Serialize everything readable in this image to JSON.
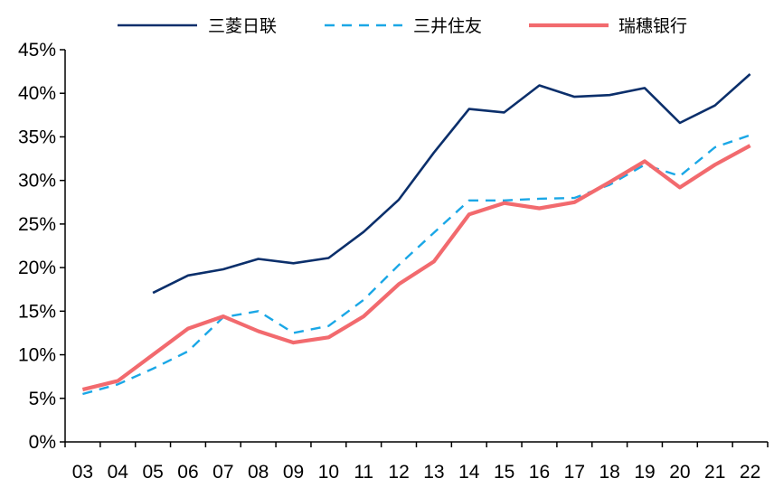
{
  "chart_data": {
    "type": "line",
    "title": "",
    "xlabel": "",
    "ylabel": "",
    "categories": [
      "03",
      "04",
      "05",
      "06",
      "07",
      "08",
      "09",
      "10",
      "11",
      "12",
      "13",
      "14",
      "15",
      "16",
      "17",
      "18",
      "19",
      "20",
      "21",
      "22"
    ],
    "y_tick_labels": [
      "0%",
      "5%",
      "10%",
      "15%",
      "20%",
      "25%",
      "30%",
      "35%",
      "40%",
      "45%"
    ],
    "ylim": [
      0,
      45
    ],
    "grid": false,
    "legend_position": "top",
    "series": [
      {
        "name": "三菱日联",
        "color": "#0b2f6b",
        "style": "solid",
        "values": [
          null,
          null,
          17.1,
          19.1,
          19.8,
          21.0,
          20.5,
          21.1,
          24.1,
          27.8,
          33.2,
          38.2,
          37.8,
          40.9,
          39.6,
          39.8,
          40.6,
          36.6,
          38.6,
          42.2
        ]
      },
      {
        "name": "三井住友",
        "color": "#1aa7e6",
        "style": "dashed",
        "values": [
          5.5,
          6.6,
          8.4,
          10.4,
          14.3,
          15.0,
          12.5,
          13.3,
          16.3,
          20.3,
          24.0,
          27.7,
          27.7,
          27.9,
          28.0,
          29.5,
          31.8,
          30.5,
          33.8,
          35.2
        ]
      },
      {
        "name": "瑞穗银行",
        "color": "#f26a6e",
        "style": "solid-thick",
        "values": [
          6.0,
          7.0,
          10.0,
          13.0,
          14.4,
          12.7,
          11.4,
          12.0,
          14.4,
          18.1,
          20.7,
          26.1,
          27.4,
          26.8,
          27.5,
          29.8,
          32.2,
          29.2,
          31.8,
          34.0
        ]
      }
    ]
  }
}
